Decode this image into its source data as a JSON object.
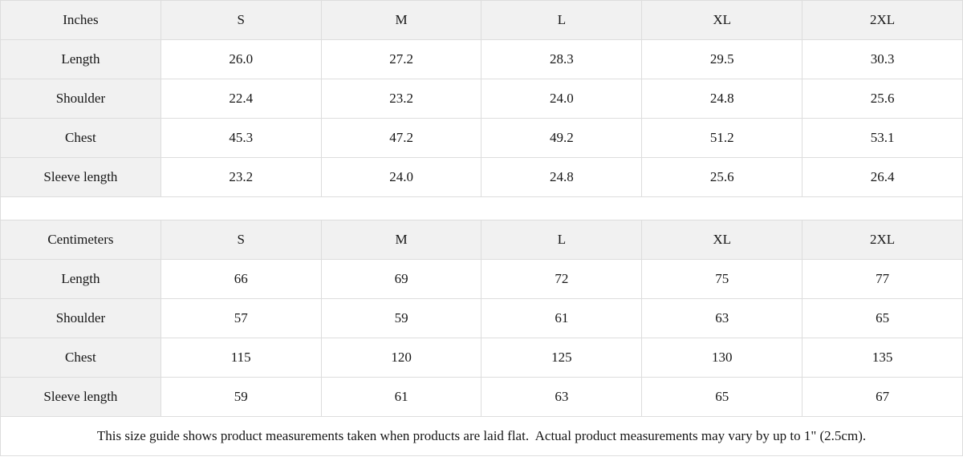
{
  "theme": {
    "header_bg": "#f1f1f1",
    "label_bg": "#f1f1f1",
    "cell_bg": "#ffffff",
    "border_color": "#dddddd",
    "text_color": "#161616"
  },
  "chart_data": [
    {
      "type": "table",
      "title": "Inches",
      "columns": [
        "Inches",
        "S",
        "M",
        "L",
        "XL",
        "2XL"
      ],
      "rows": [
        {
          "label": "Length",
          "values": [
            "26.0",
            "27.2",
            "28.3",
            "29.5",
            "30.3"
          ]
        },
        {
          "label": "Shoulder",
          "values": [
            "22.4",
            "23.2",
            "24.0",
            "24.8",
            "25.6"
          ]
        },
        {
          "label": "Chest",
          "values": [
            "45.3",
            "47.2",
            "49.2",
            "51.2",
            "53.1"
          ]
        },
        {
          "label": "Sleeve length",
          "values": [
            "23.2",
            "24.0",
            "24.8",
            "25.6",
            "26.4"
          ]
        }
      ]
    },
    {
      "type": "table",
      "title": "Centimeters",
      "columns": [
        "Centimeters",
        "S",
        "M",
        "L",
        "XL",
        "2XL"
      ],
      "rows": [
        {
          "label": "Length",
          "values": [
            "66",
            "69",
            "72",
            "75",
            "77"
          ]
        },
        {
          "label": "Shoulder",
          "values": [
            "57",
            "59",
            "61",
            "63",
            "65"
          ]
        },
        {
          "label": "Chest",
          "values": [
            "115",
            "120",
            "125",
            "130",
            "135"
          ]
        },
        {
          "label": "Sleeve length",
          "values": [
            "59",
            "61",
            "63",
            "65",
            "67"
          ]
        }
      ]
    }
  ],
  "footer": {
    "note": "This size guide shows product measurements taken when products are laid flat.  Actual product measurements may vary by up to 1\" (2.5cm)."
  }
}
